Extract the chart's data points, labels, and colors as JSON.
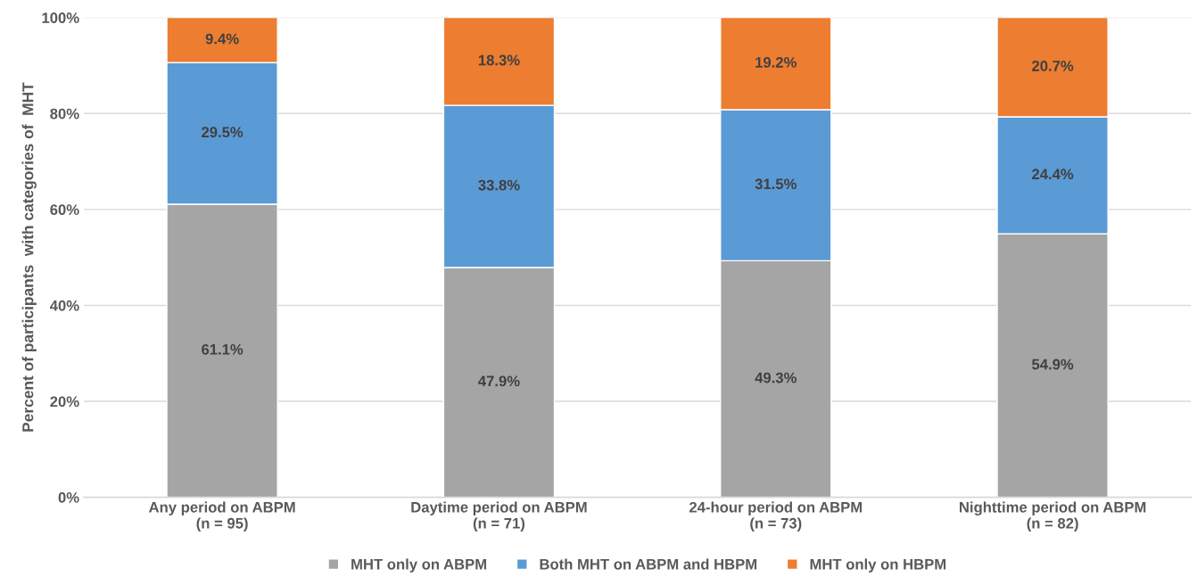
{
  "chart_data": {
    "type": "bar",
    "stacked": true,
    "ylabel": "Percent of participants  with categories of  MHT",
    "categories": [
      "Any period on ABPM\n(n = 95)",
      "Daytime period on ABPM\n(n = 71)",
      "24-hour period on ABPM\n(n = 73)",
      "Nighttime period on ABPM\n(n = 82)"
    ],
    "series": [
      {
        "name": "MHT only on ABPM",
        "color": "#a5a5a5",
        "values": [
          61.1,
          47.9,
          49.3,
          54.9
        ],
        "value_labels": [
          "61.1%",
          "47.9%",
          "49.3%",
          "54.9%"
        ]
      },
      {
        "name": "Both MHT on ABPM and HBPM",
        "color": "#5b9bd5",
        "values": [
          29.5,
          33.8,
          31.5,
          24.4
        ],
        "value_labels": [
          "29.5%",
          "33.8%",
          "31.5%",
          "24.4%"
        ]
      },
      {
        "name": "MHT only on HBPM",
        "color": "#ed7d31",
        "values": [
          9.4,
          18.3,
          19.2,
          20.7
        ],
        "value_labels": [
          "9.4%",
          "18.3%",
          "19.2%",
          "20.7%"
        ]
      }
    ],
    "ylim": [
      0,
      100
    ],
    "yticks": [
      {
        "value": 0,
        "label": "0%"
      },
      {
        "value": 20,
        "label": "20%"
      },
      {
        "value": 40,
        "label": "40%"
      },
      {
        "value": 60,
        "label": "60%"
      },
      {
        "value": 80,
        "label": "80%"
      },
      {
        "value": 100,
        "label": "100%"
      }
    ],
    "grid": "y",
    "legend": "bottom"
  }
}
